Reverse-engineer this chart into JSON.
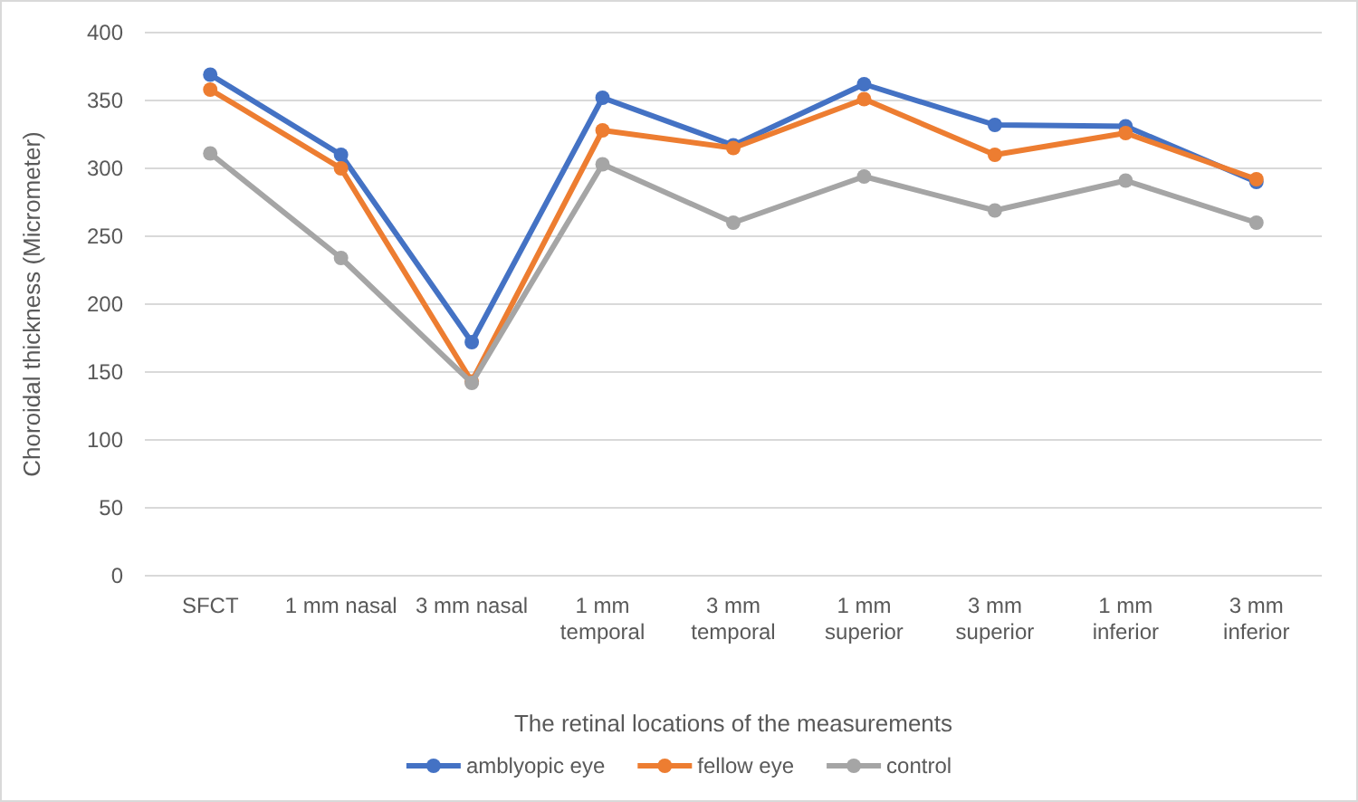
{
  "chart_data": {
    "type": "line",
    "xlabel": "The retinal locations of the measurements",
    "ylabel": "Choroidal thickness (Micrometer)",
    "categories": [
      "SFCT",
      "1 mm nasal",
      "3 mm nasal",
      "1 mm temporal",
      "3 mm temporal",
      "1 mm superior",
      "3 mm superior",
      "1 mm inferior",
      "3 mm inferior"
    ],
    "series": [
      {
        "name": "amblyopic eye",
        "color": "#4472c4",
        "values": [
          369,
          310,
          172,
          352,
          317,
          362,
          332,
          331,
          290
        ]
      },
      {
        "name": "fellow eye",
        "color": "#ed7d31",
        "values": [
          358,
          300,
          143,
          328,
          315,
          351,
          310,
          326,
          292
        ]
      },
      {
        "name": "control",
        "color": "#a5a5a5",
        "values": [
          311,
          234,
          142,
          303,
          260,
          294,
          269,
          291,
          260
        ]
      }
    ],
    "ylim": [
      0,
      400
    ],
    "yticks": [
      0,
      50,
      100,
      150,
      200,
      250,
      300,
      350,
      400
    ],
    "grid": "y",
    "legend": "bottom",
    "marker": "circle",
    "line_style": "solid"
  }
}
